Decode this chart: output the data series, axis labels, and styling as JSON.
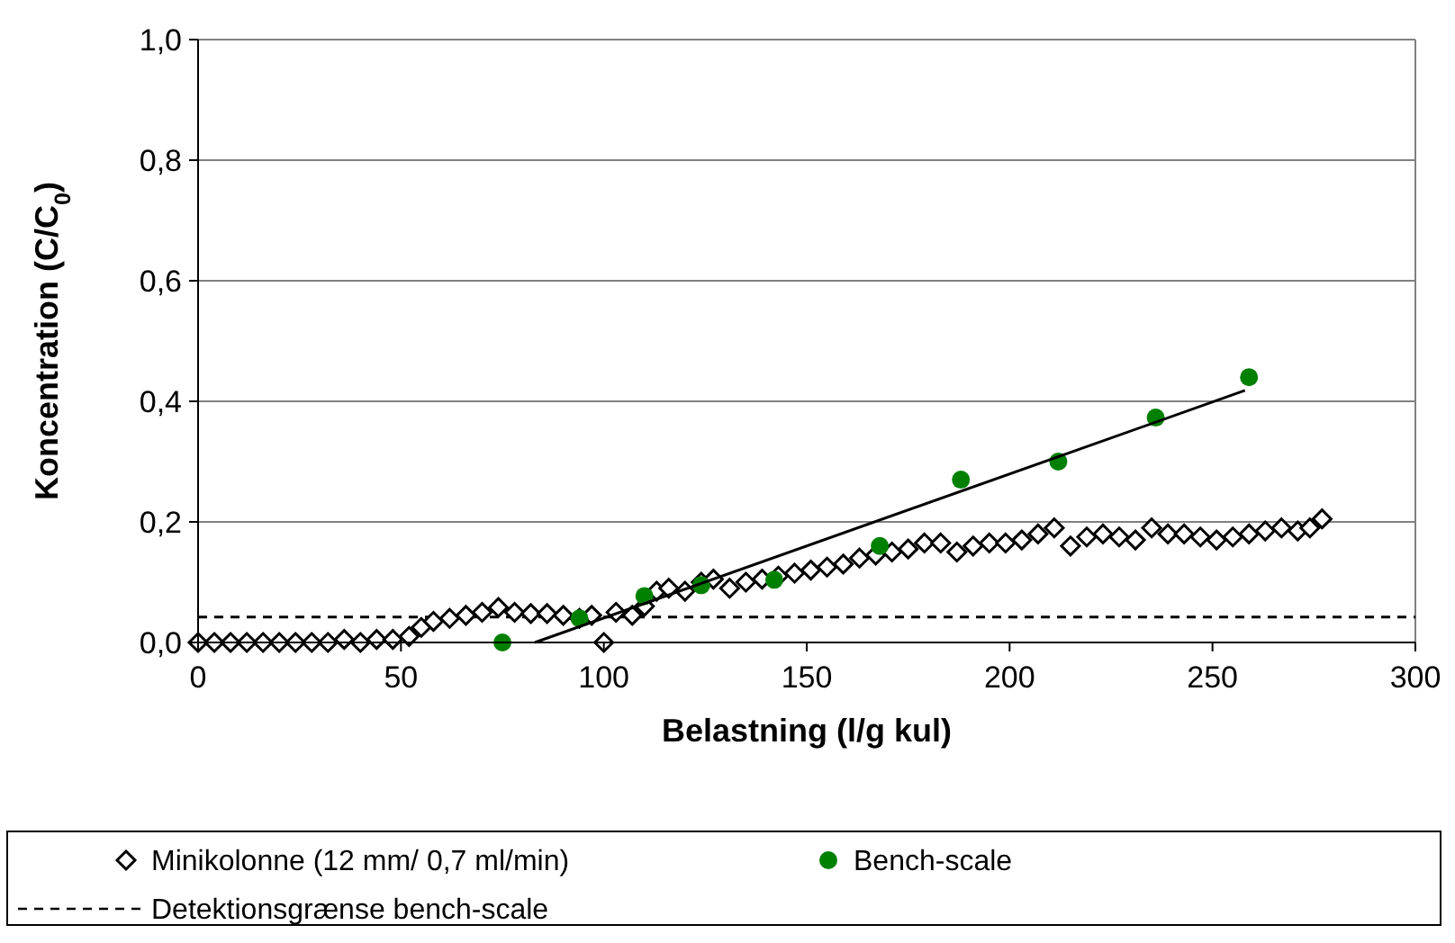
{
  "chart_data": {
    "type": "scatter",
    "xlabel": "Belastning (l/g kul)",
    "ylabel": "Koncentration (C/C$_{0}$)",
    "xlim": [
      0,
      300
    ],
    "xticks": [
      0,
      50,
      100,
      150,
      200,
      250,
      300
    ],
    "ylim": [
      0,
      1
    ],
    "yticks": [
      {
        "value": 0,
        "label": "0,0"
      },
      {
        "value": 0.2,
        "label": "0,2"
      },
      {
        "value": 0.4,
        "label": "0,4"
      },
      {
        "value": 0.6,
        "label": "0,6"
      },
      {
        "value": 0.8,
        "label": "0,8"
      },
      {
        "value": 1,
        "label": "1,0"
      }
    ],
    "grid": "y",
    "legend": "bottom",
    "series": [
      {
        "name": "Minikolonne (12 mm/ 0,7 ml/min)",
        "type": "scatter",
        "marker": "diamond",
        "color": "#000000",
        "x": [
          0,
          4,
          8,
          12,
          16,
          20,
          24,
          28,
          32,
          36,
          40,
          44,
          48,
          52,
          55,
          58,
          62,
          66,
          70,
          74,
          78,
          82,
          86,
          90,
          94,
          97,
          100,
          103,
          107,
          110,
          113,
          116,
          120,
          124,
          127,
          131,
          135,
          139,
          143,
          147,
          151,
          155,
          159,
          163,
          167,
          171,
          175,
          179,
          183,
          187,
          191,
          195,
          199,
          203,
          207,
          211,
          215,
          219,
          223,
          227,
          231,
          235,
          239,
          243,
          247,
          251,
          255,
          259,
          263,
          267,
          271,
          274,
          277
        ],
        "values": [
          0,
          0,
          0,
          0,
          0,
          0,
          0,
          0,
          0,
          0.005,
          0,
          0.005,
          0.005,
          0.01,
          0.025,
          0.035,
          0.04,
          0.045,
          0.05,
          0.058,
          0.05,
          0.048,
          0.048,
          0.045,
          0.04,
          0.045,
          0,
          0.05,
          0.045,
          0.06,
          0.085,
          0.09,
          0.085,
          0.1,
          0.105,
          0.09,
          0.1,
          0.105,
          0.11,
          0.115,
          0.12,
          0.125,
          0.13,
          0.14,
          0.145,
          0.15,
          0.155,
          0.165,
          0.165,
          0.15,
          0.16,
          0.165,
          0.165,
          0.17,
          0.18,
          0.19,
          0.16,
          0.175,
          0.18,
          0.175,
          0.17,
          0.19,
          0.18,
          0.18,
          0.175,
          0.17,
          0.175,
          0.18,
          0.185,
          0.19,
          0.185,
          0.19,
          0.205
        ]
      },
      {
        "name": "Bench-scale",
        "type": "scatter",
        "marker": "circle",
        "color": "#008000",
        "x": [
          75,
          94,
          110,
          124,
          142,
          168,
          188,
          212,
          236,
          259
        ],
        "values": [
          0,
          0.04,
          0.077,
          0.095,
          0.104,
          0.16,
          0.27,
          0.3,
          0.373,
          0.44
        ]
      },
      {
        "type": "line",
        "color": "#000000",
        "line_style": "solid",
        "x": [
          83,
          258
        ],
        "values": [
          0,
          0.418
        ]
      }
    ],
    "ref_lines": [
      {
        "axis": "y",
        "value": 0.042,
        "label": "Detektionsgrænse bench-scale",
        "color": "#000000",
        "line_style": "dashed"
      }
    ]
  }
}
